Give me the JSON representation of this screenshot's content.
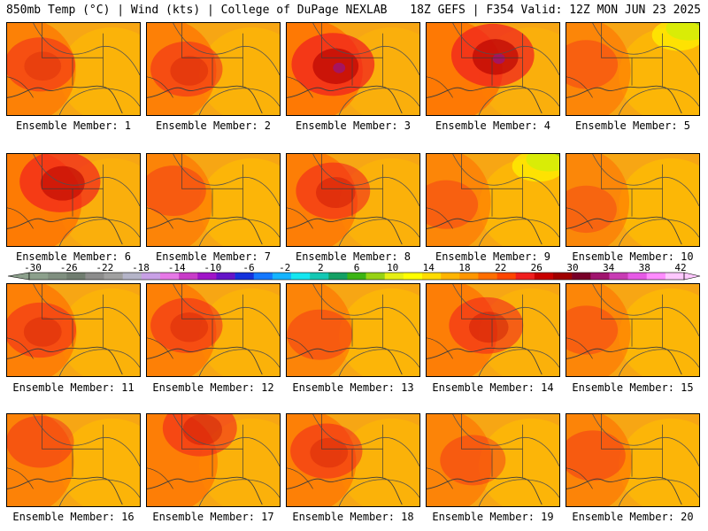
{
  "header": {
    "left": "850mb Temp (°C) | Wind (kts) | College of DuPage NEXLAB",
    "right": "18Z GEFS | F354 Valid: 12Z MON JUN 23 2025"
  },
  "panel_label_prefix": "Ensemble Member: ",
  "members": [
    {
      "number": "1",
      "heat": 0.62,
      "hot_core": [
        0.15,
        0.45
      ],
      "cool_patch": null
    },
    {
      "number": "2",
      "heat": 0.65,
      "hot_core": [
        0.2,
        0.5
      ],
      "cool_patch": null
    },
    {
      "number": "3",
      "heat": 0.9,
      "hot_core": [
        0.25,
        0.45
      ],
      "cool_patch": null
    },
    {
      "number": "4",
      "heat": 0.9,
      "hot_core": [
        0.4,
        0.35
      ],
      "cool_patch": null
    },
    {
      "number": "5",
      "heat": 0.45,
      "hot_core": [
        0.05,
        0.45
      ],
      "cool_patch": "top-right"
    },
    {
      "number": "6",
      "heat": 0.85,
      "hot_core": [
        0.3,
        0.3
      ],
      "cool_patch": null
    },
    {
      "number": "7",
      "heat": 0.5,
      "hot_core": [
        0.1,
        0.4
      ],
      "cool_patch": null
    },
    {
      "number": "8",
      "heat": 0.7,
      "hot_core": [
        0.25,
        0.4
      ],
      "cool_patch": null
    },
    {
      "number": "9",
      "heat": 0.45,
      "hot_core": [
        0.05,
        0.55
      ],
      "cool_patch": "top-right"
    },
    {
      "number": "10",
      "heat": 0.4,
      "hot_core": [
        0.05,
        0.6
      ],
      "cool_patch": null
    },
    {
      "number": "11",
      "heat": 0.65,
      "hot_core": [
        0.15,
        0.5
      ],
      "cool_patch": null
    },
    {
      "number": "12",
      "heat": 0.65,
      "hot_core": [
        0.2,
        0.45
      ],
      "cool_patch": null
    },
    {
      "number": "13",
      "heat": 0.5,
      "hot_core": [
        0.15,
        0.55
      ],
      "cool_patch": null
    },
    {
      "number": "14",
      "heat": 0.7,
      "hot_core": [
        0.35,
        0.45
      ],
      "cool_patch": null
    },
    {
      "number": "15",
      "heat": 0.45,
      "hot_core": [
        0.05,
        0.5
      ],
      "cool_patch": null
    },
    {
      "number": "16",
      "heat": 0.55,
      "hot_core": [
        0.15,
        0.3
      ],
      "cool_patch": null
    },
    {
      "number": "17",
      "heat": 0.7,
      "hot_core": [
        0.3,
        0.15
      ],
      "cool_patch": null
    },
    {
      "number": "18",
      "heat": 0.65,
      "hot_core": [
        0.2,
        0.4
      ],
      "cool_patch": null
    },
    {
      "number": "19",
      "heat": 0.5,
      "hot_core": [
        0.25,
        0.5
      ],
      "cool_patch": null
    },
    {
      "number": "20",
      "heat": 0.5,
      "hot_core": [
        0.1,
        0.45
      ],
      "cool_patch": null
    }
  ],
  "colorbar": {
    "ticks": [
      "-30",
      "-26",
      "-22",
      "-18",
      "-14",
      "-10",
      "-6",
      "-2",
      "2",
      "6",
      "10",
      "14",
      "18",
      "22",
      "26",
      "30",
      "34",
      "38",
      "42"
    ],
    "colors": [
      "#8ca08c",
      "#7f8f7f",
      "#707d70",
      "#8c8c8c",
      "#a0a0a0",
      "#b4b4c8",
      "#c8a0e6",
      "#e678e6",
      "#c83cc8",
      "#a014c8",
      "#6414c8",
      "#1432dc",
      "#1478ff",
      "#14b4ff",
      "#14e6f0",
      "#14c8b4",
      "#14a064",
      "#3cb414",
      "#96d214",
      "#e6f014",
      "#ffff00",
      "#ffdc00",
      "#ffb400",
      "#ff9600",
      "#ff6e00",
      "#ff4600",
      "#f01e1e",
      "#c80000",
      "#a00000",
      "#780028",
      "#a0146e",
      "#c83cb4",
      "#e65ae6",
      "#ff8cff",
      "#ffc8ff"
    ]
  }
}
